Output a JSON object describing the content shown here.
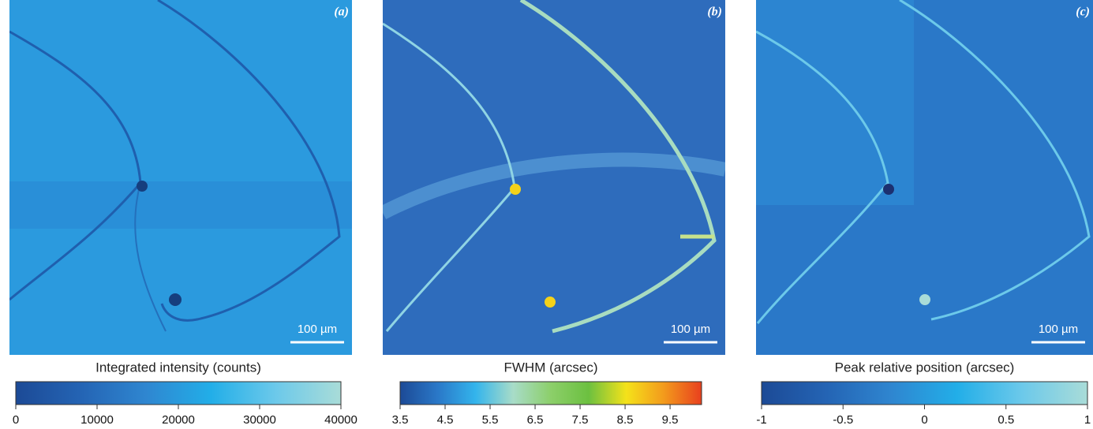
{
  "chart_data": [
    {
      "type": "heatmap",
      "panel_label": "(a)",
      "scale_bar": "100 µm",
      "colorbar_label": "Integrated intensity (counts)",
      "clim": [
        0,
        40000
      ],
      "cticks": [
        0,
        10000,
        20000,
        30000,
        40000
      ],
      "colormap": [
        "#1c4a96",
        "#2464b4",
        "#2f86d0",
        "#22aee8",
        "#6cc9ea",
        "#a9dcd8"
      ]
    },
    {
      "type": "heatmap",
      "panel_label": "(b)",
      "scale_bar": "100 µm",
      "colorbar_label": "FWHM (arcsec)",
      "clim": [
        3.5,
        10.2
      ],
      "cticks": [
        3.5,
        4.5,
        5.5,
        6.5,
        7.5,
        8.5,
        9.5
      ],
      "colormap": [
        "#1c4a96",
        "#2a78c8",
        "#33b4ec",
        "#a8dcc8",
        "#8ccf6a",
        "#6cc040",
        "#f4e21a",
        "#f39a1c",
        "#e8401e"
      ]
    },
    {
      "type": "heatmap",
      "panel_label": "(c)",
      "scale_bar": "100 µm",
      "colorbar_label": "Peak relative position (arcsec)",
      "clim": [
        -1,
        1
      ],
      "cticks": [
        -1,
        -0.5,
        0,
        0.5,
        1
      ],
      "colormap": [
        "#1c4a96",
        "#2464b4",
        "#2f86d0",
        "#22aee8",
        "#6cc9ea",
        "#a9dcd8"
      ]
    }
  ]
}
